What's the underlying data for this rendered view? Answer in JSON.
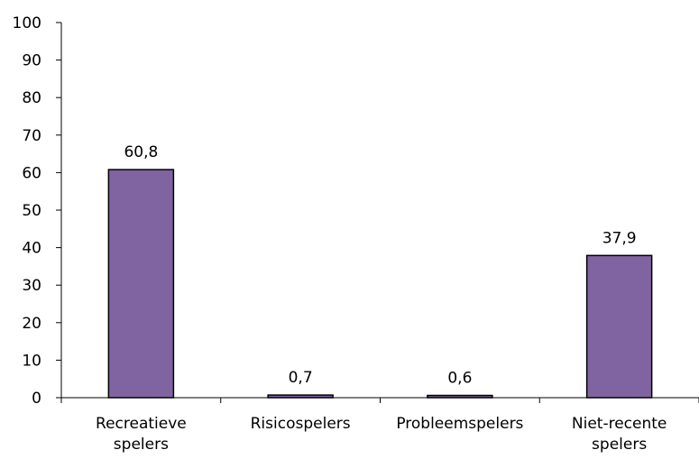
{
  "chart_data": {
    "type": "bar",
    "categories": [
      [
        "Recreatieve",
        "spelers"
      ],
      [
        "Risicospelers"
      ],
      [
        "Probleemspelers"
      ],
      [
        "Niet-recente",
        "spelers"
      ]
    ],
    "values": [
      60.8,
      0.7,
      0.6,
      37.9
    ],
    "value_labels": [
      "60,8",
      "0,7",
      "0,6",
      "37,9"
    ],
    "yticks": [
      "0",
      "10",
      "20",
      "30",
      "40",
      "50",
      "60",
      "70",
      "80",
      "90",
      "100"
    ],
    "ylim": [
      0,
      100
    ],
    "title": "",
    "xlabel": "",
    "ylabel": "",
    "grid": false,
    "legend": "none",
    "bar_color": "#8064A2"
  }
}
